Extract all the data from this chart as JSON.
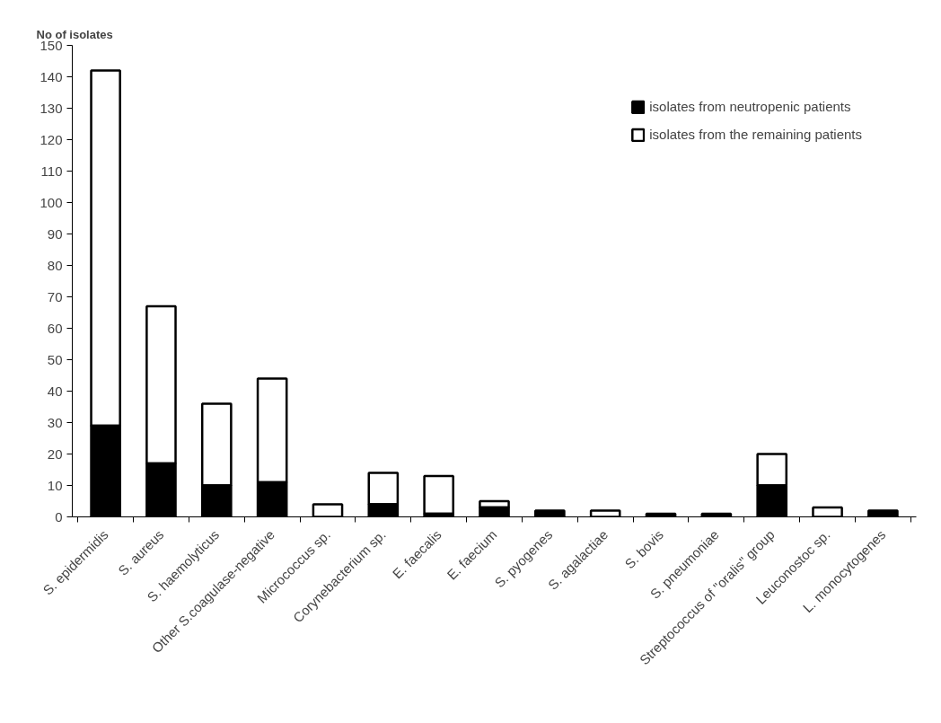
{
  "chart_data": {
    "type": "bar",
    "stacked": true,
    "ylabel": "No of isolates",
    "categories": [
      "S. epidermidis",
      "S. aureus",
      "S. haemolyticus",
      "Other S.coagulase-negative",
      "Micrococcus sp.",
      "Corynebacterium sp.",
      "E. faecalis",
      "E. faecium",
      "S. pyogenes",
      "S. agalactiae",
      "S. bovis",
      "S. pneumoniae",
      "Streptococcus of \"oralis\" group",
      "Leuconostoc sp.",
      "L. monocytogenes"
    ],
    "series": [
      {
        "name": "isolates from neutropenic patients",
        "color": "#000000",
        "values": [
          29,
          17,
          10,
          11,
          0,
          4,
          1,
          3,
          2,
          0,
          1,
          1,
          10,
          0,
          2
        ]
      },
      {
        "name": "isolates from the remaining patients",
        "color": "#ffffff",
        "values": [
          113,
          50,
          26,
          33,
          4,
          10,
          12,
          2,
          0,
          2,
          0,
          0,
          10,
          3,
          0
        ]
      }
    ],
    "ylim": [
      0,
      150
    ],
    "yticks": [
      0,
      10,
      20,
      30,
      40,
      50,
      60,
      70,
      80,
      90,
      100,
      110,
      120,
      130,
      140,
      150
    ],
    "grid": false,
    "legend": "top right"
  }
}
